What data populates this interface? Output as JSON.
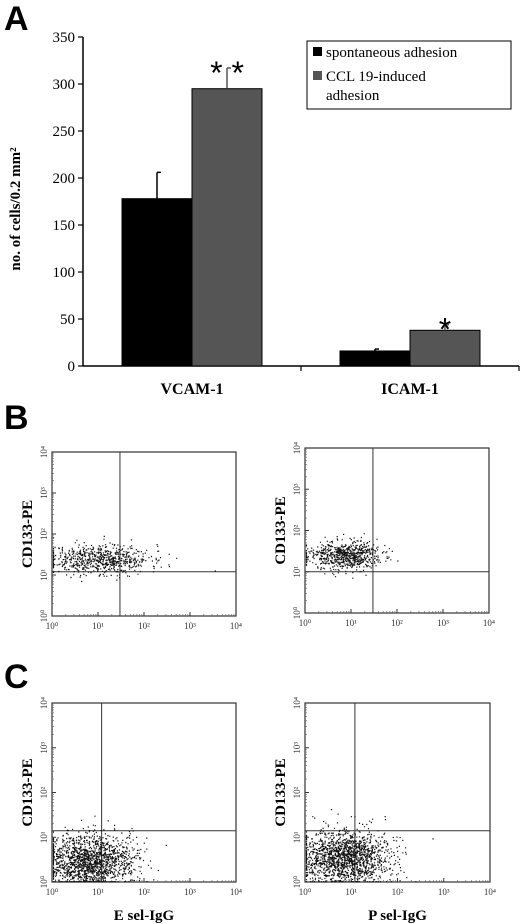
{
  "panels": {
    "a": {
      "letter": "A"
    },
    "b": {
      "letter": "B"
    },
    "c": {
      "letter": "C"
    }
  },
  "chart_data": [
    {
      "type": "bar",
      "categories": [
        "VCAM-1",
        "ICAM-1"
      ],
      "series": [
        {
          "name": "spontaneous adhesion",
          "values": [
            178,
            16
          ],
          "errors": [
            28,
            2
          ],
          "color": "#000000"
        },
        {
          "name": "CCL 19-induced adhesion",
          "values": [
            295,
            38
          ],
          "errors": [
            22,
            6
          ],
          "color": "#555555"
        }
      ],
      "significance": [
        [
          "",
          "* *"
        ],
        [
          "",
          "*"
        ]
      ],
      "ylabel": "no. of cells/0.2 mm²",
      "ylim": [
        0,
        350
      ],
      "yticks": [
        0,
        50,
        100,
        150,
        200,
        250,
        300,
        350
      ],
      "legend": "top-right"
    },
    {
      "type": "scatter",
      "scale": "log",
      "ylabel": "CD133-PE",
      "xlabel": "",
      "ticks": [
        "10⁰",
        "10¹",
        "10²",
        "10³",
        "10⁴"
      ],
      "quadrant_gate": [
        30,
        12
      ],
      "population": {
        "center": [
          10,
          25
        ],
        "spread": [
          0.55,
          0.18
        ],
        "n": 700
      }
    },
    {
      "type": "scatter",
      "scale": "log",
      "ylabel": "CD133-PE",
      "xlabel": "",
      "ticks": [
        "10⁰",
        "10¹",
        "10²",
        "10³",
        "10⁴"
      ],
      "quadrant_gate": [
        30,
        10
      ],
      "population": {
        "center": [
          7,
          25
        ],
        "spread": [
          0.4,
          0.17
        ],
        "n": 700
      }
    },
    {
      "type": "scatter",
      "scale": "log",
      "ylabel": "CD133-PE",
      "xlabel": "E sel-IgG",
      "ticks": [
        "10⁰",
        "10¹",
        "10²",
        "10³",
        "10⁴"
      ],
      "quadrant_gate": [
        12,
        14
      ],
      "population": {
        "center": [
          6,
          3
        ],
        "spread": [
          0.5,
          0.3
        ],
        "n": 1600
      }
    },
    {
      "type": "scatter",
      "scale": "log",
      "ylabel": "CD133-PE",
      "xlabel": "P sel-IgG",
      "ticks": [
        "10⁰",
        "10¹",
        "10²",
        "10³",
        "10⁴"
      ],
      "quadrant_gate": [
        12,
        14
      ],
      "population": {
        "center": [
          7,
          3.5
        ],
        "spread": [
          0.5,
          0.3
        ],
        "n": 1600
      }
    }
  ]
}
